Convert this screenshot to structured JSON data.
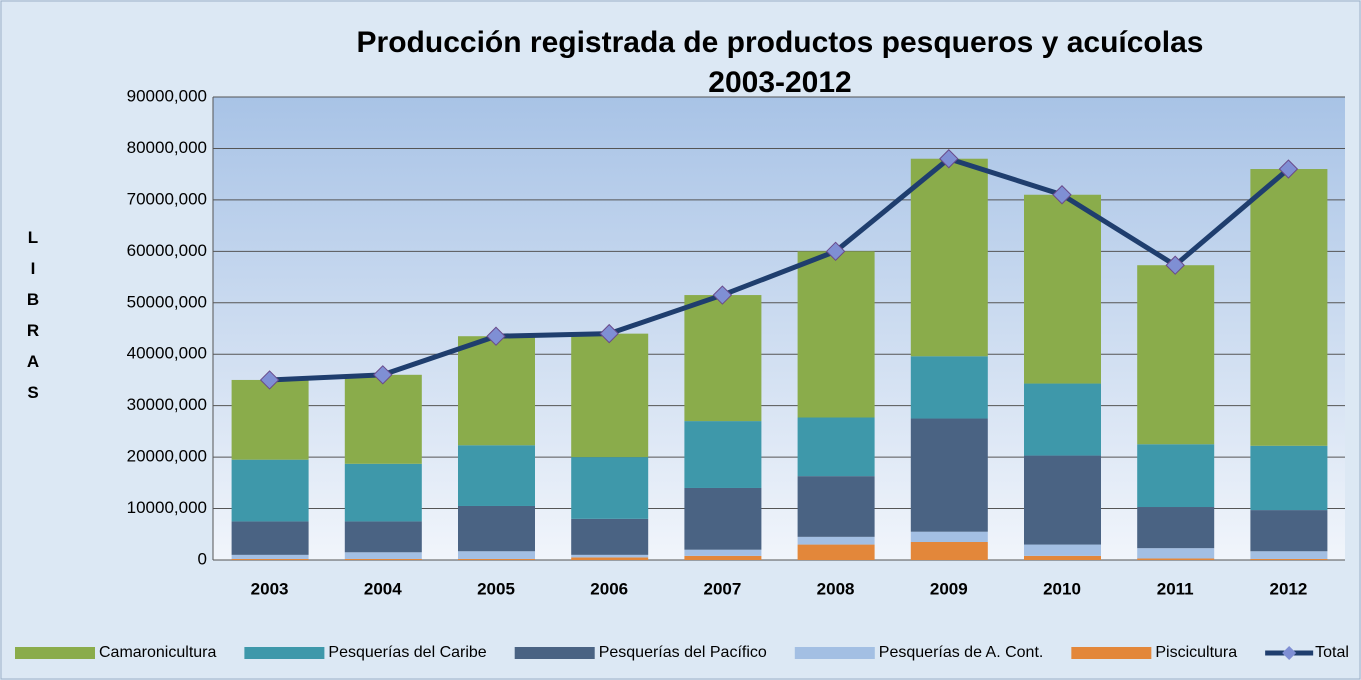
{
  "chart_data": {
    "type": "bar",
    "title": [
      "Producción registrada de productos pesqueros y acuícolas",
      "2003-2012"
    ],
    "y_label": "LIBRAS",
    "categories": [
      "2003",
      "2004",
      "2005",
      "2006",
      "2007",
      "2008",
      "2009",
      "2010",
      "2011",
      "2012"
    ],
    "series": [
      {
        "name": "Piscicultura",
        "color": "#e3873a",
        "values": [
          200000,
          200000,
          200000,
          500000,
          800000,
          3000000,
          3500000,
          800000,
          300000,
          200000
        ]
      },
      {
        "name": "Pesquerías de A. Cont.",
        "color": "#a3bfe3",
        "values": [
          800000,
          1300000,
          1500000,
          500000,
          1200000,
          1500000,
          2000000,
          2200000,
          2000000,
          1500000
        ]
      },
      {
        "name": "Pesquerías del Pacífico",
        "color": "#4a6383",
        "values": [
          6500000,
          6000000,
          8800000,
          7000000,
          12000000,
          11800000,
          22000000,
          17300000,
          8000000,
          8000000
        ]
      },
      {
        "name": "Pesquerías del Caribe",
        "color": "#3e98aa",
        "values": [
          12000000,
          11200000,
          11800000,
          12000000,
          13000000,
          11400000,
          12100000,
          14000000,
          12200000,
          12500000
        ]
      },
      {
        "name": "Camaronicultura",
        "color": "#8aac4b",
        "values": [
          15500000,
          17300000,
          21200000,
          24000000,
          24500000,
          32300000,
          38400000,
          36700000,
          34800000,
          53800000
        ]
      },
      {
        "name": "Total",
        "type": "line",
        "color": "#1f3e6e",
        "marker_color": "#7f8fd4",
        "values": [
          35000000,
          36000000,
          43500000,
          44000000,
          51500000,
          60000000,
          78000000,
          71000000,
          57300000,
          76000000
        ]
      }
    ],
    "legend_order": [
      4,
      3,
      2,
      1,
      0,
      5
    ],
    "ylim": [
      0,
      90000000
    ],
    "yticks": [
      0,
      {
        "value": 10000000,
        "label": "10000,000"
      },
      {
        "value": 20000000,
        "label": "20000,000"
      },
      {
        "value": 30000000,
        "label": "30000,000"
      },
      {
        "value": 40000000,
        "label": "40000,000"
      },
      {
        "value": 50000000,
        "label": "50000,000"
      },
      {
        "value": 60000000,
        "label": "60000,000"
      },
      {
        "value": 70000000,
        "label": "70000,000"
      },
      {
        "value": 80000000,
        "label": "80000,000"
      },
      {
        "value": 90000000,
        "label": "90000,000"
      }
    ],
    "grid": true,
    "legend": "bottom"
  }
}
